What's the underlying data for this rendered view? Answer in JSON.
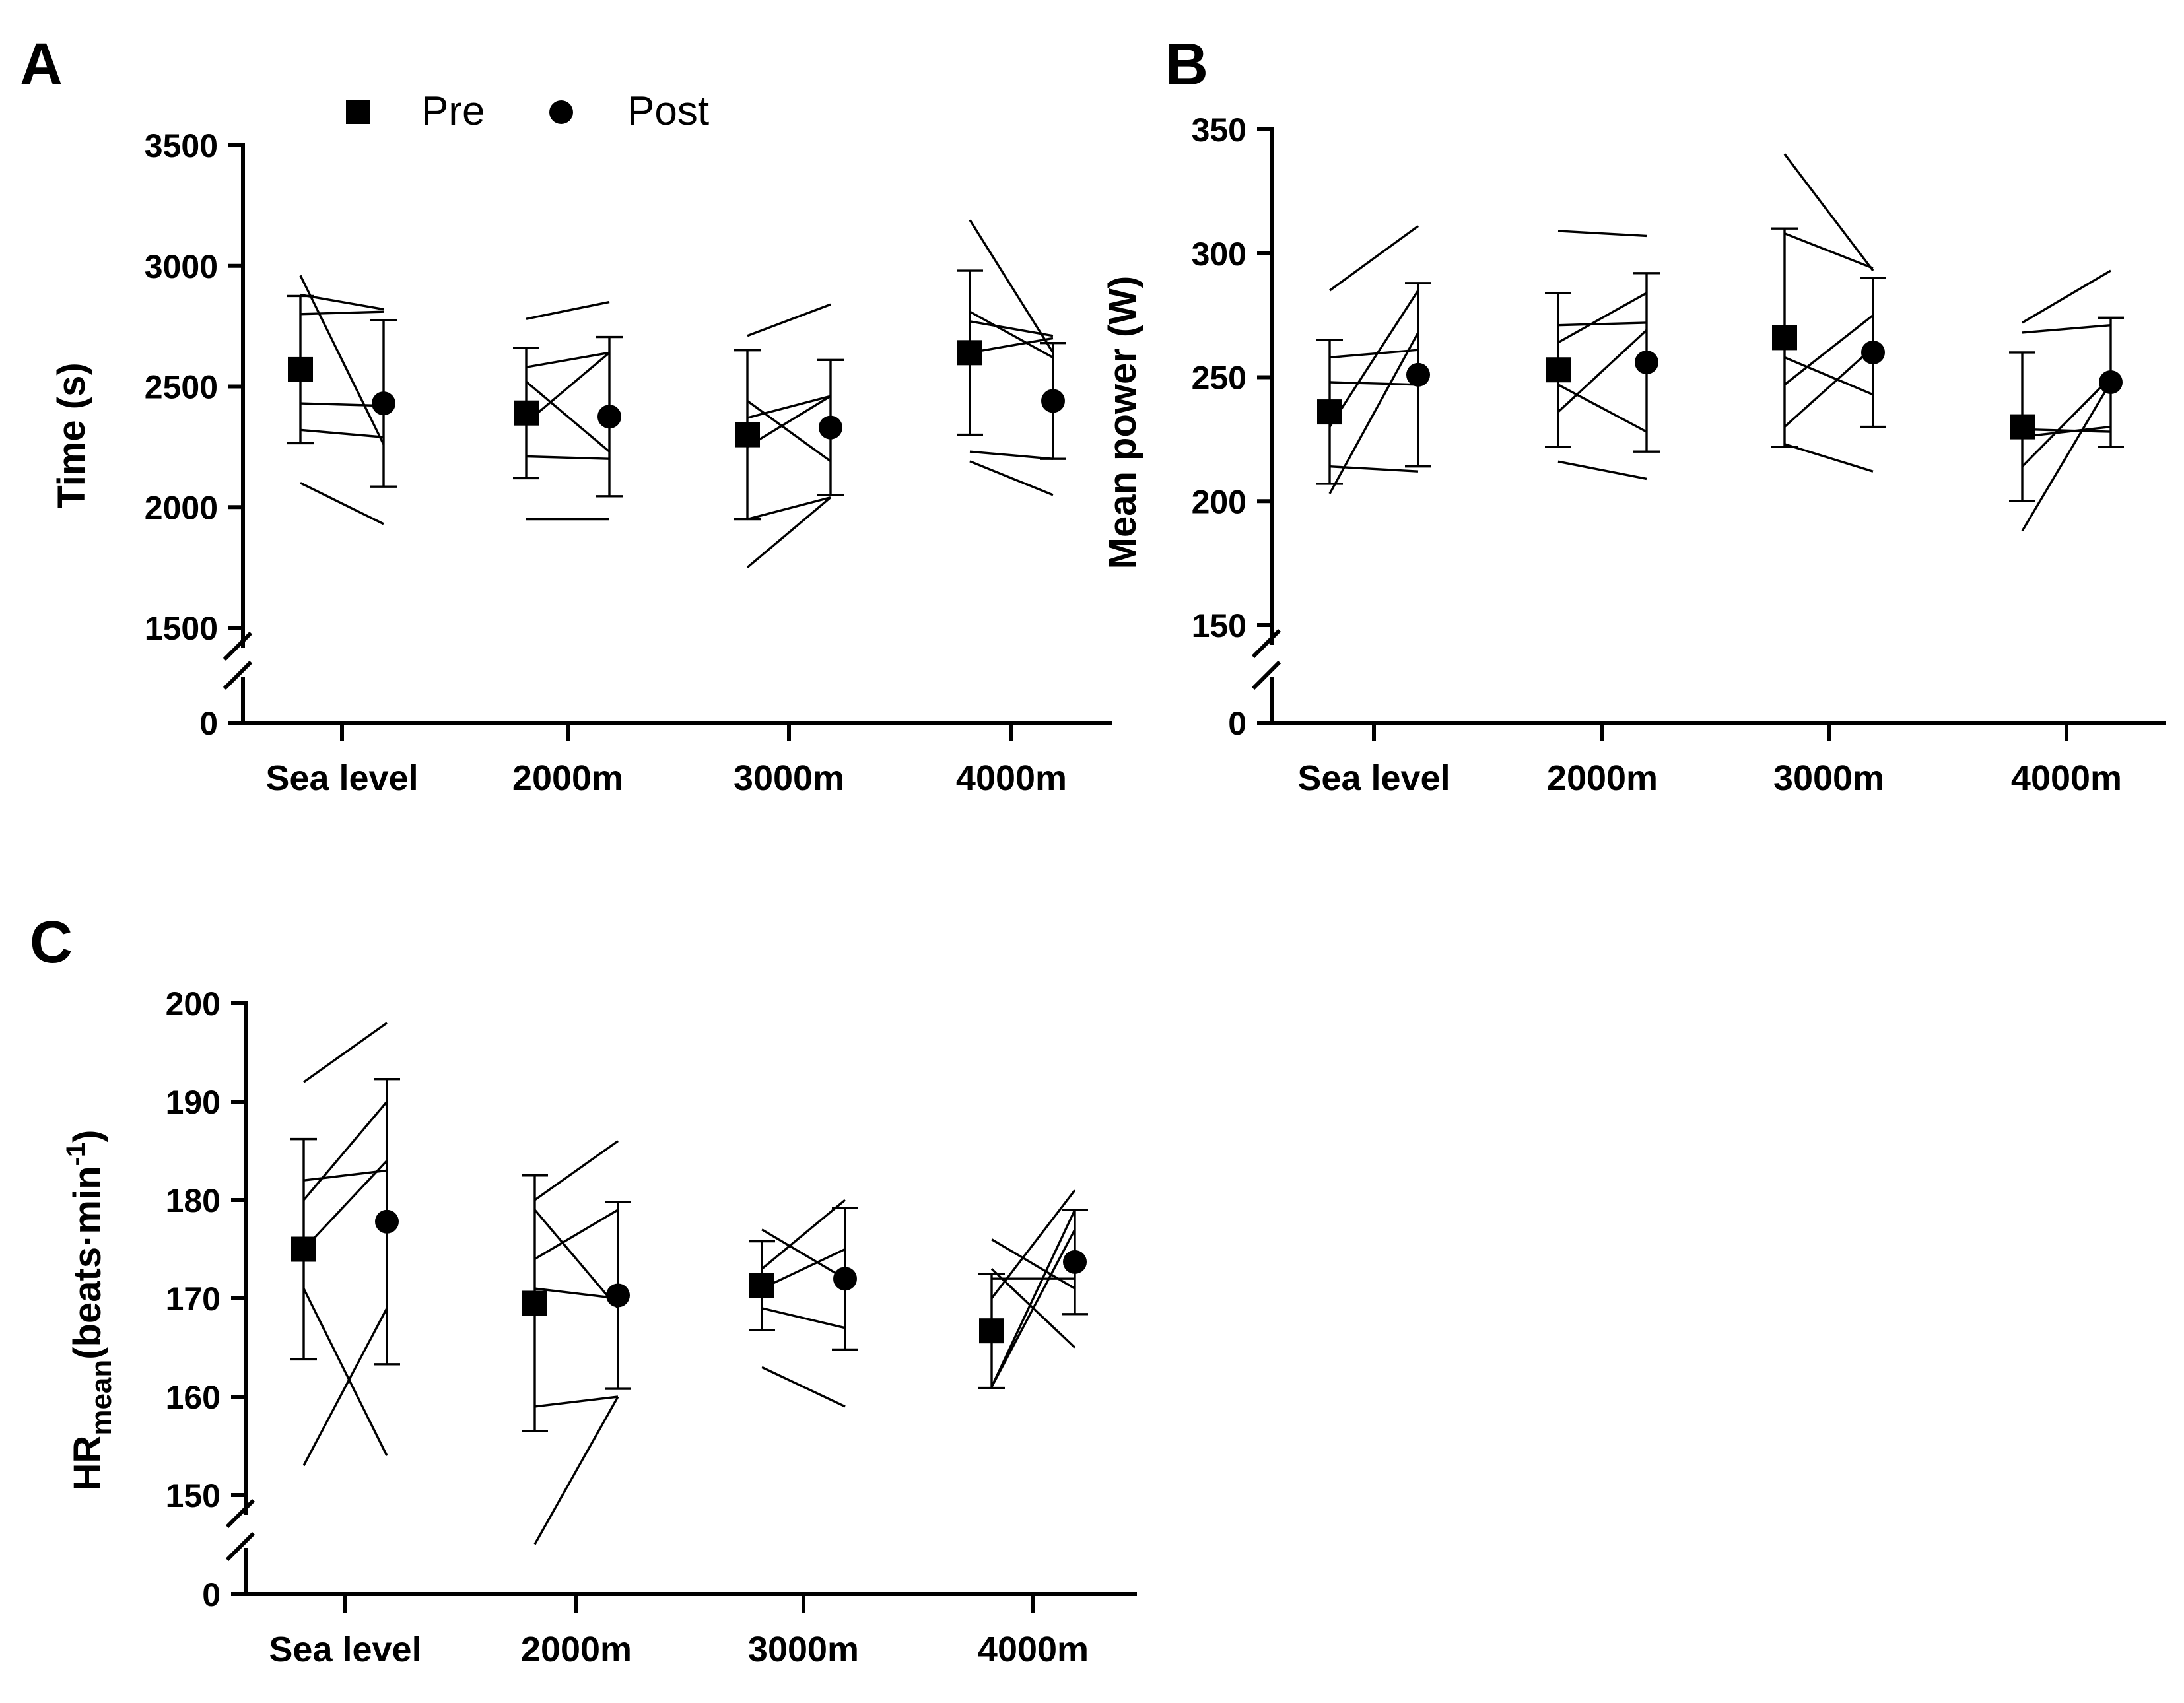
{
  "legend": {
    "pre_label": "Pre",
    "post_label": "Post",
    "pre_icon": "filled-square-icon",
    "post_icon": "filled-circle-icon"
  },
  "chart_data": [
    {
      "panel": "A",
      "type": "scatter",
      "title": "",
      "xlabel": "",
      "ylabel": "Time (s)",
      "categories": [
        "Sea level",
        "2000m",
        "3000m",
        "4000m"
      ],
      "y_ticks": [
        0,
        1500,
        2000,
        2500,
        3000,
        3500
      ],
      "ylim": [
        1500,
        3500
      ],
      "y_break": [
        0,
        1500
      ],
      "series": [
        {
          "name": "Pre",
          "marker": "square",
          "values": [
            2570,
            2390,
            2300,
            2640
          ],
          "sd": [
            305,
            270,
            350,
            340
          ]
        },
        {
          "name": "Post",
          "marker": "circle",
          "values": [
            2430,
            2375,
            2330,
            2440
          ],
          "sd": [
            345,
            330,
            280,
            240
          ]
        }
      ],
      "individuals": [
        [
          [
            2960,
            2260
          ],
          [
            2880,
            2820
          ],
          [
            2800,
            2810
          ],
          [
            2430,
            2420
          ],
          [
            2320,
            2290
          ],
          [
            2100,
            1930
          ]
        ],
        [
          [
            2780,
            2850
          ],
          [
            2580,
            2640
          ],
          [
            2520,
            2230
          ],
          [
            2350,
            2640
          ],
          [
            2210,
            2200
          ],
          [
            1950,
            1950
          ]
        ],
        [
          [
            2710,
            2840
          ],
          [
            2440,
            2190
          ],
          [
            2370,
            2460
          ],
          [
            2250,
            2460
          ],
          [
            1950,
            2040
          ],
          [
            1750,
            2040
          ]
        ],
        [
          [
            3190,
            2640
          ],
          [
            2810,
            2620
          ],
          [
            2770,
            2710
          ],
          [
            2640,
            2700
          ],
          [
            2230,
            2200
          ],
          [
            2190,
            2050
          ]
        ]
      ]
    },
    {
      "panel": "B",
      "type": "scatter",
      "title": "",
      "xlabel": "",
      "ylabel": "Mean power (W)",
      "categories": [
        "Sea level",
        "2000m",
        "3000m",
        "4000m"
      ],
      "y_ticks": [
        0,
        150,
        200,
        250,
        300,
        350
      ],
      "ylim": [
        150,
        350
      ],
      "y_break": [
        0,
        150
      ],
      "series": [
        {
          "name": "Pre",
          "marker": "square",
          "values": [
            236,
            253,
            266,
            230
          ],
          "sd": [
            29,
            31,
            44,
            30
          ]
        },
        {
          "name": "Post",
          "marker": "circle",
          "values": [
            251,
            256,
            260,
            248
          ],
          "sd": [
            37,
            36,
            30,
            26
          ]
        }
      ],
      "individuals": [
        [
          [
            285,
            311
          ],
          [
            258,
            261
          ],
          [
            248,
            247
          ],
          [
            230,
            285
          ],
          [
            214,
            212
          ],
          [
            203,
            268
          ]
        ],
        [
          [
            309,
            307
          ],
          [
            271,
            272
          ],
          [
            264,
            284
          ],
          [
            247,
            228
          ],
          [
            236,
            269
          ],
          [
            216,
            209
          ]
        ],
        [
          [
            340,
            293
          ],
          [
            308,
            294
          ],
          [
            258,
            243
          ],
          [
            247,
            275
          ],
          [
            230,
            262
          ],
          [
            223,
            212
          ]
        ],
        [
          [
            272,
            293
          ],
          [
            268,
            271
          ],
          [
            229,
            228
          ],
          [
            226,
            230
          ],
          [
            214,
            250
          ],
          [
            188,
            248
          ]
        ]
      ]
    },
    {
      "panel": "C",
      "type": "scatter",
      "title": "",
      "xlabel": "",
      "ylabel": "HRmean(beats·min-1)",
      "ylabel_main": "HR",
      "ylabel_sub": "mean",
      "ylabel_rest": "(beats·min",
      "ylabel_sup": "-1",
      "ylabel_end": ")",
      "categories": [
        "Sea level",
        "2000m",
        "3000m",
        "4000m"
      ],
      "y_ticks": [
        0,
        150,
        160,
        170,
        180,
        190,
        200
      ],
      "ylim": [
        150,
        200
      ],
      "y_break": [
        0,
        150
      ],
      "series": [
        {
          "name": "Pre",
          "marker": "square",
          "values": [
            175.0,
            169.5,
            171.3,
            166.7
          ],
          "sd": [
            11.2,
            13.0,
            4.5,
            5.8
          ]
        },
        {
          "name": "Post",
          "marker": "circle",
          "values": [
            177.8,
            170.3,
            172.0,
            173.7
          ],
          "sd": [
            14.5,
            9.5,
            7.2,
            5.3
          ]
        }
      ],
      "individuals": [
        [
          [
            192,
            198
          ],
          [
            182,
            183
          ],
          [
            180,
            190
          ],
          [
            175,
            184
          ],
          [
            171,
            154
          ],
          [
            153,
            169
          ]
        ],
        [
          [
            180,
            186
          ],
          [
            179,
            169
          ],
          [
            174,
            179
          ],
          [
            171,
            170
          ],
          [
            159,
            160
          ],
          [
            145,
            160
          ]
        ],
        [
          [
            177,
            172
          ],
          [
            173,
            180
          ],
          [
            171,
            175
          ],
          [
            169,
            167
          ],
          [
            163,
            159
          ]
        ],
        [
          [
            176,
            171
          ],
          [
            173,
            165
          ],
          [
            172,
            172
          ],
          [
            170,
            181
          ],
          [
            161,
            179
          ],
          [
            161,
            177
          ]
        ]
      ]
    }
  ]
}
